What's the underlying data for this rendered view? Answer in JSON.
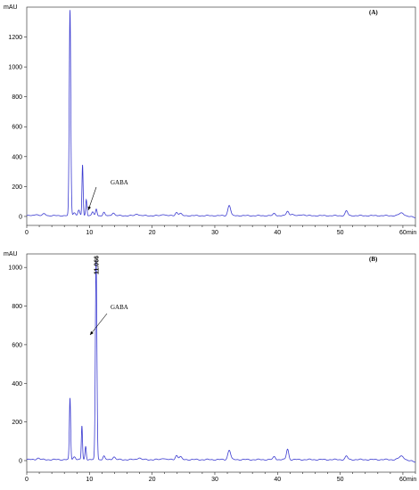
{
  "chart_data": [
    {
      "type": "line",
      "panel_label": "(A)",
      "ylabel": "mAU",
      "xlabel": "min",
      "xlim": [
        0,
        62
      ],
      "ylim": [
        -60,
        1400
      ],
      "xticks": [
        0,
        2,
        4,
        6,
        8,
        10,
        12,
        14,
        16,
        18,
        20,
        22,
        24,
        26,
        28,
        30,
        32,
        34,
        36,
        38,
        40,
        42,
        44,
        46,
        48,
        50,
        52,
        54,
        56,
        58,
        60,
        62
      ],
      "xtick_labels": [
        "0",
        "",
        "",
        "",
        "",
        "10",
        "",
        "",
        "",
        "",
        "20",
        "",
        "",
        "",
        "",
        "30",
        "",
        "",
        "",
        "",
        "40",
        "",
        "",
        "",
        "",
        "50",
        "",
        "",
        "",
        "",
        "60",
        ""
      ],
      "yticks": [
        0,
        200,
        400,
        600,
        800,
        1000,
        1200
      ],
      "grid": false,
      "line_color": "#3a3ad0",
      "baseline": 5,
      "peaks": [
        {
          "rt": 1.5,
          "h": 10,
          "w": 0.25
        },
        {
          "rt": 2.8,
          "h": 12,
          "w": 0.25
        },
        {
          "rt": 6.9,
          "h": 1375,
          "w": 0.12
        },
        {
          "rt": 7.6,
          "h": 20,
          "w": 0.2
        },
        {
          "rt": 8.3,
          "h": 35,
          "w": 0.15
        },
        {
          "rt": 8.9,
          "h": 340,
          "w": 0.09
        },
        {
          "rt": 9.5,
          "h": 110,
          "w": 0.1
        },
        {
          "rt": 10.5,
          "h": 25,
          "w": 0.15
        },
        {
          "rt": 11.1,
          "h": 45,
          "w": 0.12
        },
        {
          "rt": 12.3,
          "h": 22,
          "w": 0.15
        },
        {
          "rt": 13.8,
          "h": 20,
          "w": 0.2
        },
        {
          "rt": 17.6,
          "h": 12,
          "w": 0.25
        },
        {
          "rt": 21.8,
          "h": 10,
          "w": 0.25
        },
        {
          "rt": 23.9,
          "h": 22,
          "w": 0.2
        },
        {
          "rt": 24.5,
          "h": 15,
          "w": 0.2
        },
        {
          "rt": 32.3,
          "h": 70,
          "w": 0.22
        },
        {
          "rt": 39.5,
          "h": 15,
          "w": 0.2
        },
        {
          "rt": 41.6,
          "h": 30,
          "w": 0.2
        },
        {
          "rt": 42.3,
          "h": 12,
          "w": 0.2
        },
        {
          "rt": 44.0,
          "h": 8,
          "w": 0.3
        },
        {
          "rt": 51.0,
          "h": 32,
          "w": 0.2
        },
        {
          "rt": 59.8,
          "h": 18,
          "w": 0.4
        }
      ],
      "annotations": [
        {
          "text": "GABA",
          "x": 11.1,
          "y": 45
        }
      ]
    },
    {
      "type": "line",
      "panel_label": "(B)",
      "ylabel": "mAU",
      "xlabel": "min",
      "xlim": [
        0,
        62
      ],
      "ylim": [
        -60,
        1070
      ],
      "xticks": [
        0,
        2,
        4,
        6,
        8,
        10,
        12,
        14,
        16,
        18,
        20,
        22,
        24,
        26,
        28,
        30,
        32,
        34,
        36,
        38,
        40,
        42,
        44,
        46,
        48,
        50,
        52,
        54,
        56,
        58,
        60,
        62
      ],
      "xtick_labels": [
        "0",
        "",
        "",
        "",
        "",
        "10",
        "",
        "",
        "",
        "",
        "20",
        "",
        "",
        "",
        "",
        "30",
        "",
        "",
        "",
        "",
        "40",
        "",
        "",
        "",
        "",
        "50",
        "",
        "",
        "",
        "",
        "60",
        ""
      ],
      "yticks": [
        0,
        200,
        400,
        600,
        800,
        1000
      ],
      "grid": false,
      "line_color": "#3a3ad0",
      "baseline": 5,
      "peaks": [
        {
          "rt": 1.8,
          "h": 8,
          "w": 0.25
        },
        {
          "rt": 6.9,
          "h": 318,
          "w": 0.1
        },
        {
          "rt": 7.6,
          "h": 15,
          "w": 0.2
        },
        {
          "rt": 8.8,
          "h": 175,
          "w": 0.09
        },
        {
          "rt": 9.4,
          "h": 70,
          "w": 0.1
        },
        {
          "rt": 11.066,
          "h": 1035,
          "w": 0.12
        },
        {
          "rt": 12.3,
          "h": 18,
          "w": 0.15
        },
        {
          "rt": 13.9,
          "h": 15,
          "w": 0.2
        },
        {
          "rt": 17.9,
          "h": 10,
          "w": 0.25
        },
        {
          "rt": 21.8,
          "h": 8,
          "w": 0.25
        },
        {
          "rt": 23.9,
          "h": 22,
          "w": 0.2
        },
        {
          "rt": 24.5,
          "h": 15,
          "w": 0.2
        },
        {
          "rt": 32.3,
          "h": 50,
          "w": 0.22
        },
        {
          "rt": 39.5,
          "h": 15,
          "w": 0.2
        },
        {
          "rt": 41.6,
          "h": 55,
          "w": 0.18
        },
        {
          "rt": 51.0,
          "h": 18,
          "w": 0.2
        },
        {
          "rt": 59.8,
          "h": 18,
          "w": 0.4
        }
      ],
      "rt_label": "11.066",
      "annotations": [
        {
          "text": "GABA",
          "x": 11.066,
          "y": 690
        }
      ]
    }
  ]
}
